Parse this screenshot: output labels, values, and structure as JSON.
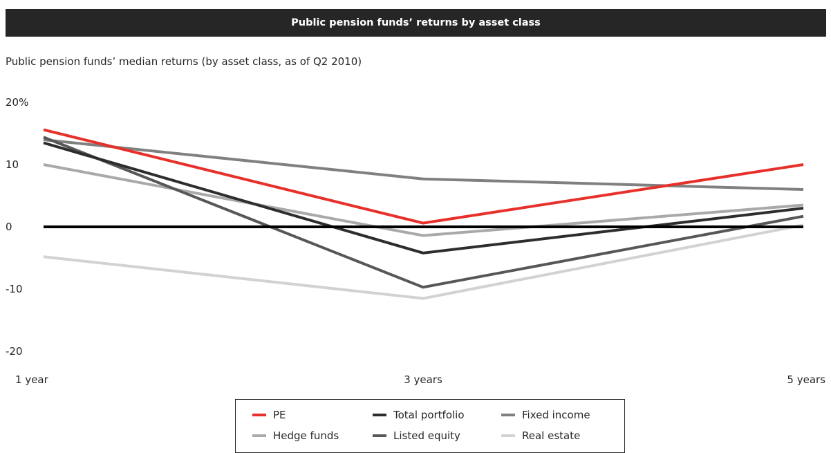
{
  "header": {
    "title": "Public pension funds’ returns by asset class"
  },
  "subtitle": "Public pension funds’ median returns (by asset class, as of Q2 2010)",
  "chart_data": {
    "type": "line",
    "title": "Public pension funds’ returns by asset class",
    "subtitle": "Public pension funds’ median returns (by asset class, as of Q2 2010)",
    "categories": [
      "1 year",
      "3 years",
      "5 years"
    ],
    "ylim": [
      -20,
      20
    ],
    "yticks": [
      20,
      10,
      0,
      -10,
      -20
    ],
    "ytick_labels": [
      "20%",
      "10",
      "0",
      "-10",
      "-20"
    ],
    "zero_line": true,
    "grid": false,
    "legend_position": "bottom",
    "series": [
      {
        "name": "PE",
        "color": "#e8302a",
        "values": [
          15.6,
          0.6,
          10.0
        ]
      },
      {
        "name": "Total portfolio",
        "color": "#2d2d2d",
        "values": [
          13.5,
          -4.2,
          3.0
        ]
      },
      {
        "name": "Fixed income",
        "color": "#808080",
        "values": [
          14.0,
          7.7,
          6.0
        ]
      },
      {
        "name": "Hedge funds",
        "color": "#a9a9a9",
        "values": [
          10.0,
          -1.4,
          3.5
        ]
      },
      {
        "name": "Listed equity",
        "color": "#575757",
        "values": [
          14.4,
          -9.7,
          1.7
        ]
      },
      {
        "name": "Real estate",
        "color": "#d2d2d2",
        "values": [
          -4.8,
          -11.5,
          0.3
        ]
      }
    ]
  }
}
